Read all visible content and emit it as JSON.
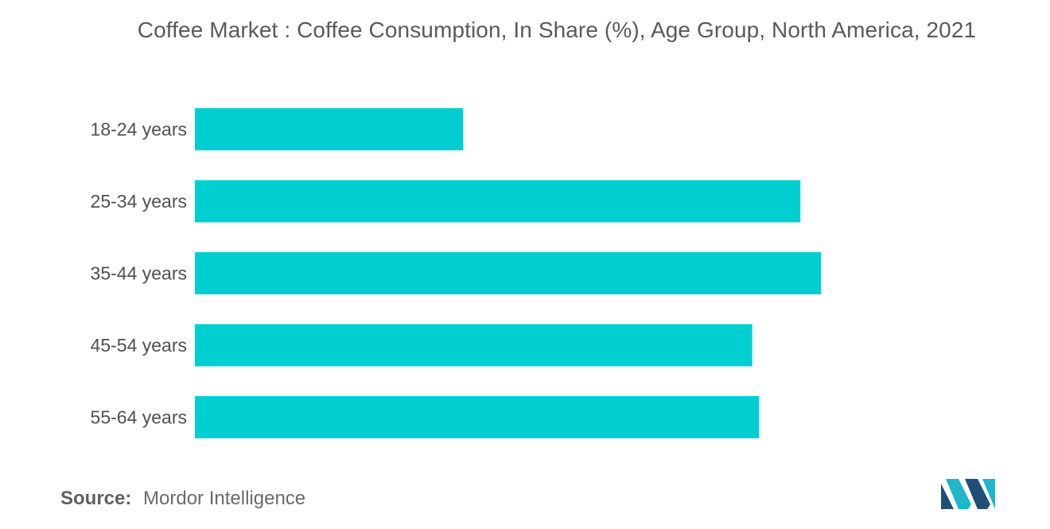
{
  "chart_data": {
    "type": "bar",
    "orientation": "horizontal",
    "title": "Coffee Market : Coffee Consumption, In Share (%), Age Group, North America, 2021",
    "categories": [
      "18-24 years",
      "25-34 years",
      "35-44 years",
      "45-54 years",
      "55-64 years"
    ],
    "values": [
      39,
      88,
      91,
      81,
      82
    ],
    "xlim": [
      0,
      100
    ],
    "grid": false,
    "bar_color": "#00ced1"
  },
  "source": {
    "label": "Source:",
    "text": "Mordor Intelligence"
  },
  "logo": {
    "icon": "mordor-intelligence-logo",
    "colors": [
      "#1f4e79",
      "#20b6c8"
    ]
  }
}
